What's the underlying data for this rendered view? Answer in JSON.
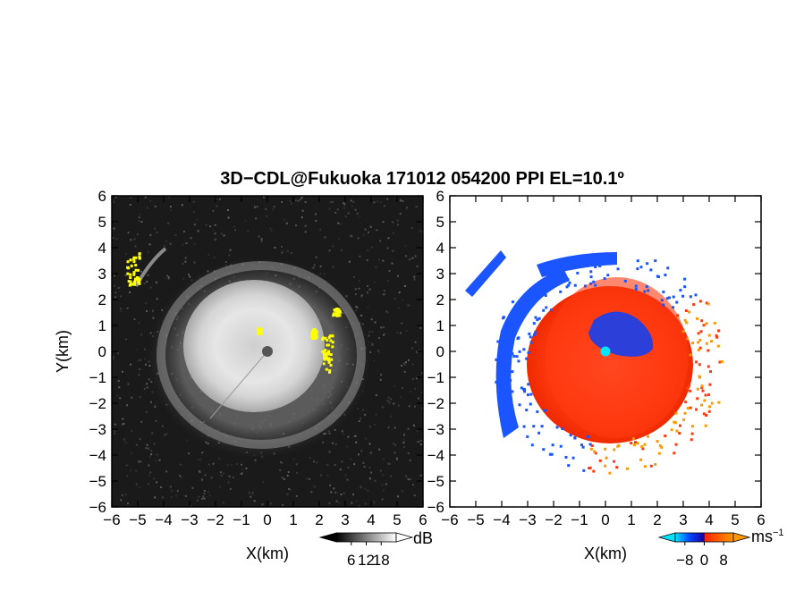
{
  "chart_data": {
    "title": "3D−CDL@Fukuoka 171012 054200 PPI EL=10.1º",
    "panels": [
      {
        "type": "heatmap",
        "quantity": "reflectivity",
        "xlabel": "X(km)",
        "ylabel": "Y(km)",
        "xlim": [
          -6,
          6
        ],
        "ylim": [
          -6,
          6
        ],
        "x_ticks": [
          -6,
          -5,
          -4,
          -3,
          -2,
          -1,
          0,
          1,
          2,
          3,
          4,
          5,
          6
        ],
        "y_ticks": [
          -6,
          -5,
          -4,
          -3,
          -2,
          -1,
          0,
          1,
          2,
          3,
          4,
          5,
          6
        ],
        "background_color": "#1a1a1a",
        "highlight_color": "#ffff00",
        "colorbar": {
          "unit": "dB",
          "ticks": [
            6,
            12,
            18
          ],
          "range": [
            0,
            24
          ],
          "colors": [
            "#000000",
            "#ffffff"
          ],
          "extend": "both"
        }
      },
      {
        "type": "heatmap",
        "quantity": "doppler velocity",
        "xlabel": "X(km)",
        "xlim": [
          -6,
          6
        ],
        "ylim": [
          -6,
          6
        ],
        "x_ticks": [
          -6,
          -5,
          -4,
          -3,
          -2,
          -1,
          0,
          1,
          2,
          3,
          4,
          5,
          6
        ],
        "y_ticks": [
          -6,
          -5,
          -4,
          -3,
          -2,
          -1,
          0,
          1,
          2,
          3,
          4,
          5,
          6
        ],
        "background_color": "#ffffff",
        "colorbar": {
          "unit": "ms",
          "unit_exponent": "−1",
          "ticks": [
            -8,
            0,
            8
          ],
          "range": [
            -12,
            12
          ],
          "colors": [
            "#00e5ff",
            "#0044ff",
            "#ff2200",
            "#ff9900"
          ],
          "extend": "both"
        }
      }
    ]
  }
}
